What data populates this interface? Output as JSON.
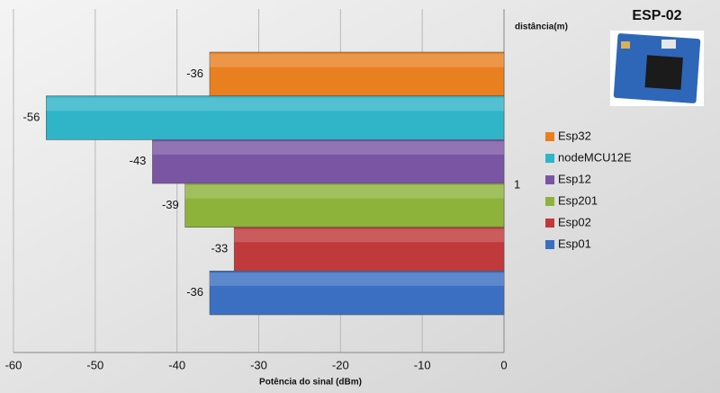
{
  "chart_data": {
    "type": "bar",
    "orientation": "horizontal",
    "title": "ESP-02",
    "categories": [
      "1"
    ],
    "series": [
      {
        "name": "Esp32",
        "color": "#e8801f",
        "values": [
          -36
        ]
      },
      {
        "name": "nodeMCU12E",
        "color": "#2fb4c8",
        "values": [
          -56
        ]
      },
      {
        "name": "Esp12",
        "color": "#7a55a3",
        "values": [
          -43
        ]
      },
      {
        "name": "Esp201",
        "color": "#8db33a",
        "values": [
          -39
        ]
      },
      {
        "name": "Esp02",
        "color": "#c0393b",
        "values": [
          -33
        ]
      },
      {
        "name": "Esp01",
        "color": "#3a6fc1",
        "values": [
          -36
        ]
      }
    ],
    "xlim": [
      -60,
      0
    ],
    "xticks": [
      -60,
      -50,
      -40,
      -30,
      -20,
      -10,
      0
    ],
    "x_label": "Potência do sinal (dBm)",
    "y_label": "distância(m)",
    "grid": true,
    "legend": "right"
  }
}
